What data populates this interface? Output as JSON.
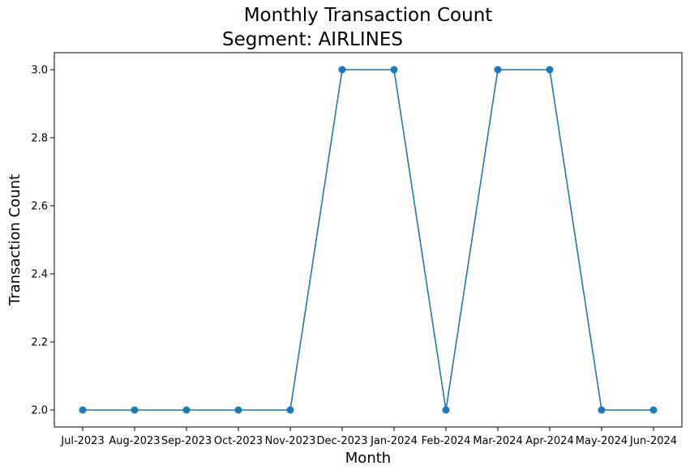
{
  "chart_data": {
    "type": "line",
    "title": "Monthly Transaction Count",
    "subtitle": "Segment: AIRLINES",
    "xlabel": "Month",
    "ylabel": "Transaction Count",
    "categories": [
      "Jul-2023",
      "Aug-2023",
      "Sep-2023",
      "Oct-2023",
      "Nov-2023",
      "Dec-2023",
      "Jan-2024",
      "Feb-2024",
      "Mar-2024",
      "Apr-2024",
      "May-2024",
      "Jun-2024"
    ],
    "series": [
      {
        "values": [
          2,
          2,
          2,
          2,
          2,
          3,
          3,
          2,
          3,
          3,
          2,
          2
        ],
        "color": "#1f77b4",
        "marker": "circle"
      }
    ],
    "ylim": [
      1.95,
      3.05
    ],
    "yticks": [
      "2.0",
      "2.2",
      "2.4",
      "2.6",
      "2.8",
      "3.0"
    ],
    "grid": false,
    "legend": "none"
  }
}
